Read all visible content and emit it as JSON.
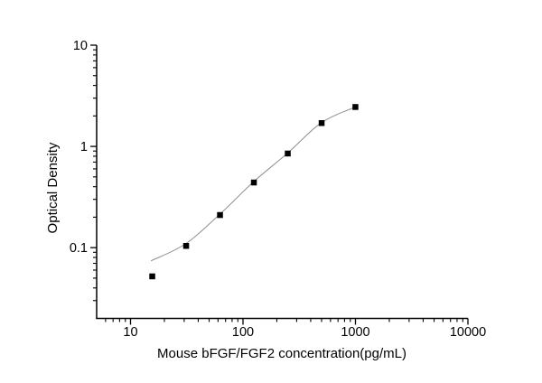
{
  "chart_data": {
    "type": "scatter",
    "title": "",
    "xlabel": "Mouse bFGF/FGF2 concentration(pg/mL)",
    "ylabel": "Optical Density",
    "xscale": "log",
    "yscale": "log",
    "xlim": [
      5,
      10000
    ],
    "ylim": [
      0.02,
      10
    ],
    "grid": false,
    "legend": null,
    "x_major_ticks": [
      10,
      100,
      1000,
      10000
    ],
    "x_tick_labels": [
      "10",
      "100",
      "1000",
      "10000"
    ],
    "y_major_ticks": [
      10,
      1,
      0.1
    ],
    "y_tick_labels": [
      "10",
      "1",
      "0.1"
    ],
    "series": [
      {
        "name": "standard curve points",
        "marker": "filled-square",
        "color": "#000000",
        "x": [
          15.6,
          31.25,
          62.5,
          125,
          250,
          500,
          1000
        ],
        "y": [
          0.052,
          0.104,
          0.21,
          0.44,
          0.85,
          1.7,
          2.45
        ]
      }
    ],
    "fit_curve": {
      "name": "4PL fit line",
      "color": "#8f8f8f",
      "points": [
        [
          15.2,
          0.074
        ],
        [
          31.25,
          0.11
        ],
        [
          62.5,
          0.215
        ],
        [
          125,
          0.45
        ],
        [
          250,
          0.86
        ],
        [
          500,
          1.72
        ],
        [
          1000,
          2.45
        ]
      ]
    },
    "colors": {
      "axis": "#000000",
      "text": "#000000",
      "background": "#ffffff"
    }
  }
}
